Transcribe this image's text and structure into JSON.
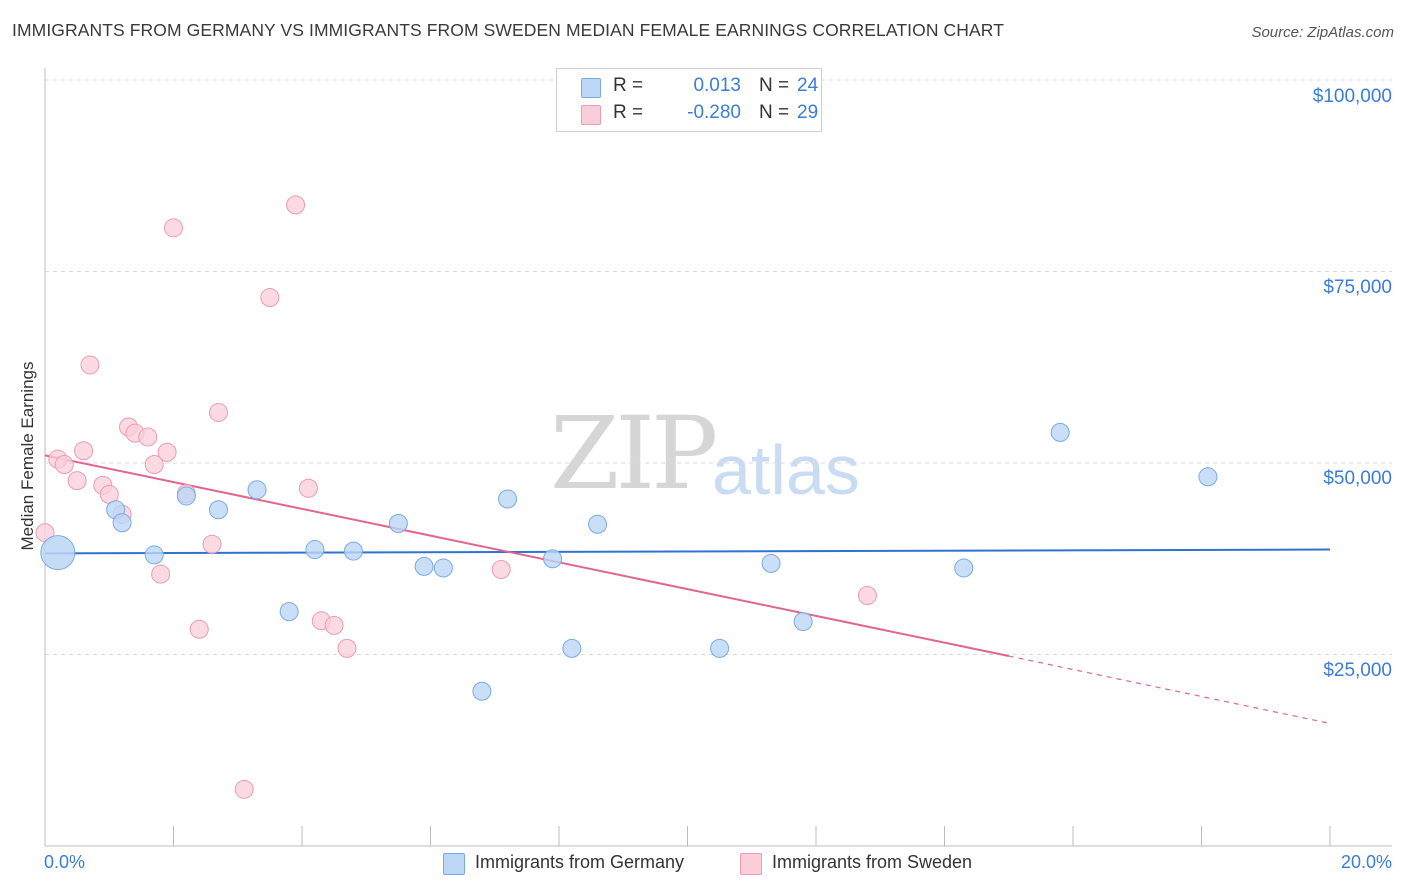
{
  "title": "IMMIGRANTS FROM GERMANY VS IMMIGRANTS FROM SWEDEN MEDIAN FEMALE EARNINGS CORRELATION CHART",
  "source": "Source: ZipAtlas.com",
  "watermark": {
    "zip": "ZIP",
    "atlas": "atlas"
  },
  "legend": {
    "rows": [
      {
        "r_label": "R =",
        "r_value": "0.013",
        "n_label": "N =",
        "n_value": "24",
        "color": "#aacbf2"
      },
      {
        "r_label": "R =",
        "r_value": "-0.280",
        "n_label": "N =",
        "n_value": "29",
        "color": "#f7b8cb"
      }
    ]
  },
  "bottom_legend": [
    {
      "label": "Immigrants from Germany",
      "color": "#aacbf2"
    },
    {
      "label": "Immigrants from Sweden",
      "color": "#f7b8cb"
    }
  ],
  "colors": {
    "germany_fill": "#bcd6f5",
    "germany_stroke": "#7aaae6",
    "germany_line": "#2f73d0",
    "sweden_fill": "#f9cdda",
    "sweden_stroke": "#ee9ab4",
    "sweden_line": "#e1668f",
    "grid": "#d9d9d9",
    "axis_text": "#3b7dd8"
  },
  "chart_data": {
    "type": "scatter",
    "title": "IMMIGRANTS FROM GERMANY VS IMMIGRANTS FROM SWEDEN MEDIAN FEMALE EARNINGS CORRELATION CHART",
    "xlabel": "",
    "ylabel": "Median Female Earnings",
    "xlim": [
      0,
      20
    ],
    "ylim": [
      0,
      105000
    ],
    "x_tick_labels": {
      "left": "0.0%",
      "right": "20.0%"
    },
    "y_ticks": [
      {
        "value": 100000,
        "label": "$100,000"
      },
      {
        "value": 75000,
        "label": "$75,000"
      },
      {
        "value": 50000,
        "label": "$50,000"
      },
      {
        "value": 25000,
        "label": "$25,000"
      }
    ],
    "series": [
      {
        "name": "Immigrants from Germany",
        "r": 0.013,
        "n": 24,
        "points": [
          [
            0.2,
            38300,
            "large"
          ],
          [
            1.1,
            43900
          ],
          [
            1.2,
            42200
          ],
          [
            1.7,
            38000
          ],
          [
            2.2,
            45700
          ],
          [
            2.7,
            43900
          ],
          [
            3.3,
            46500
          ],
          [
            3.8,
            30600
          ],
          [
            4.2,
            38700
          ],
          [
            4.8,
            38500
          ],
          [
            5.5,
            42100
          ],
          [
            5.9,
            36500
          ],
          [
            6.2,
            36300
          ],
          [
            6.8,
            20200
          ],
          [
            7.2,
            45300
          ],
          [
            7.9,
            37500
          ],
          [
            8.2,
            25800
          ],
          [
            8.6,
            42000
          ],
          [
            10.5,
            25800
          ],
          [
            11.3,
            36900
          ],
          [
            11.8,
            29300
          ],
          [
            14.3,
            36300
          ],
          [
            15.8,
            54000
          ],
          [
            18.1,
            48200
          ]
        ],
        "trend": {
          "x0": 0,
          "y0": 38200,
          "x1": 20,
          "y1": 38700
        }
      },
      {
        "name": "Immigrants from Sweden",
        "r": -0.28,
        "n": 29,
        "points": [
          [
            0.0,
            40900
          ],
          [
            0.2,
            50500
          ],
          [
            0.3,
            49800
          ],
          [
            0.5,
            47700
          ],
          [
            0.6,
            51600
          ],
          [
            0.7,
            62800
          ],
          [
            0.9,
            47100
          ],
          [
            1.0,
            45900
          ],
          [
            1.2,
            43300
          ],
          [
            1.3,
            54700
          ],
          [
            1.4,
            53900
          ],
          [
            1.6,
            53400
          ],
          [
            1.7,
            49800
          ],
          [
            1.8,
            35500
          ],
          [
            1.9,
            51400
          ],
          [
            2.0,
            80700
          ],
          [
            2.2,
            46000
          ],
          [
            2.4,
            28300
          ],
          [
            2.6,
            39400
          ],
          [
            2.7,
            56600
          ],
          [
            3.1,
            7400
          ],
          [
            3.5,
            71600
          ],
          [
            3.9,
            83700
          ],
          [
            4.1,
            46700
          ],
          [
            4.3,
            29400
          ],
          [
            4.5,
            28800
          ],
          [
            4.7,
            25800
          ],
          [
            7.1,
            36100
          ],
          [
            12.8,
            32700
          ]
        ],
        "trend": {
          "x0": 0,
          "y0": 51000,
          "x1": 15,
          "y1": 24800,
          "dash_x1": 20,
          "dash_y1": 16000
        }
      }
    ]
  }
}
